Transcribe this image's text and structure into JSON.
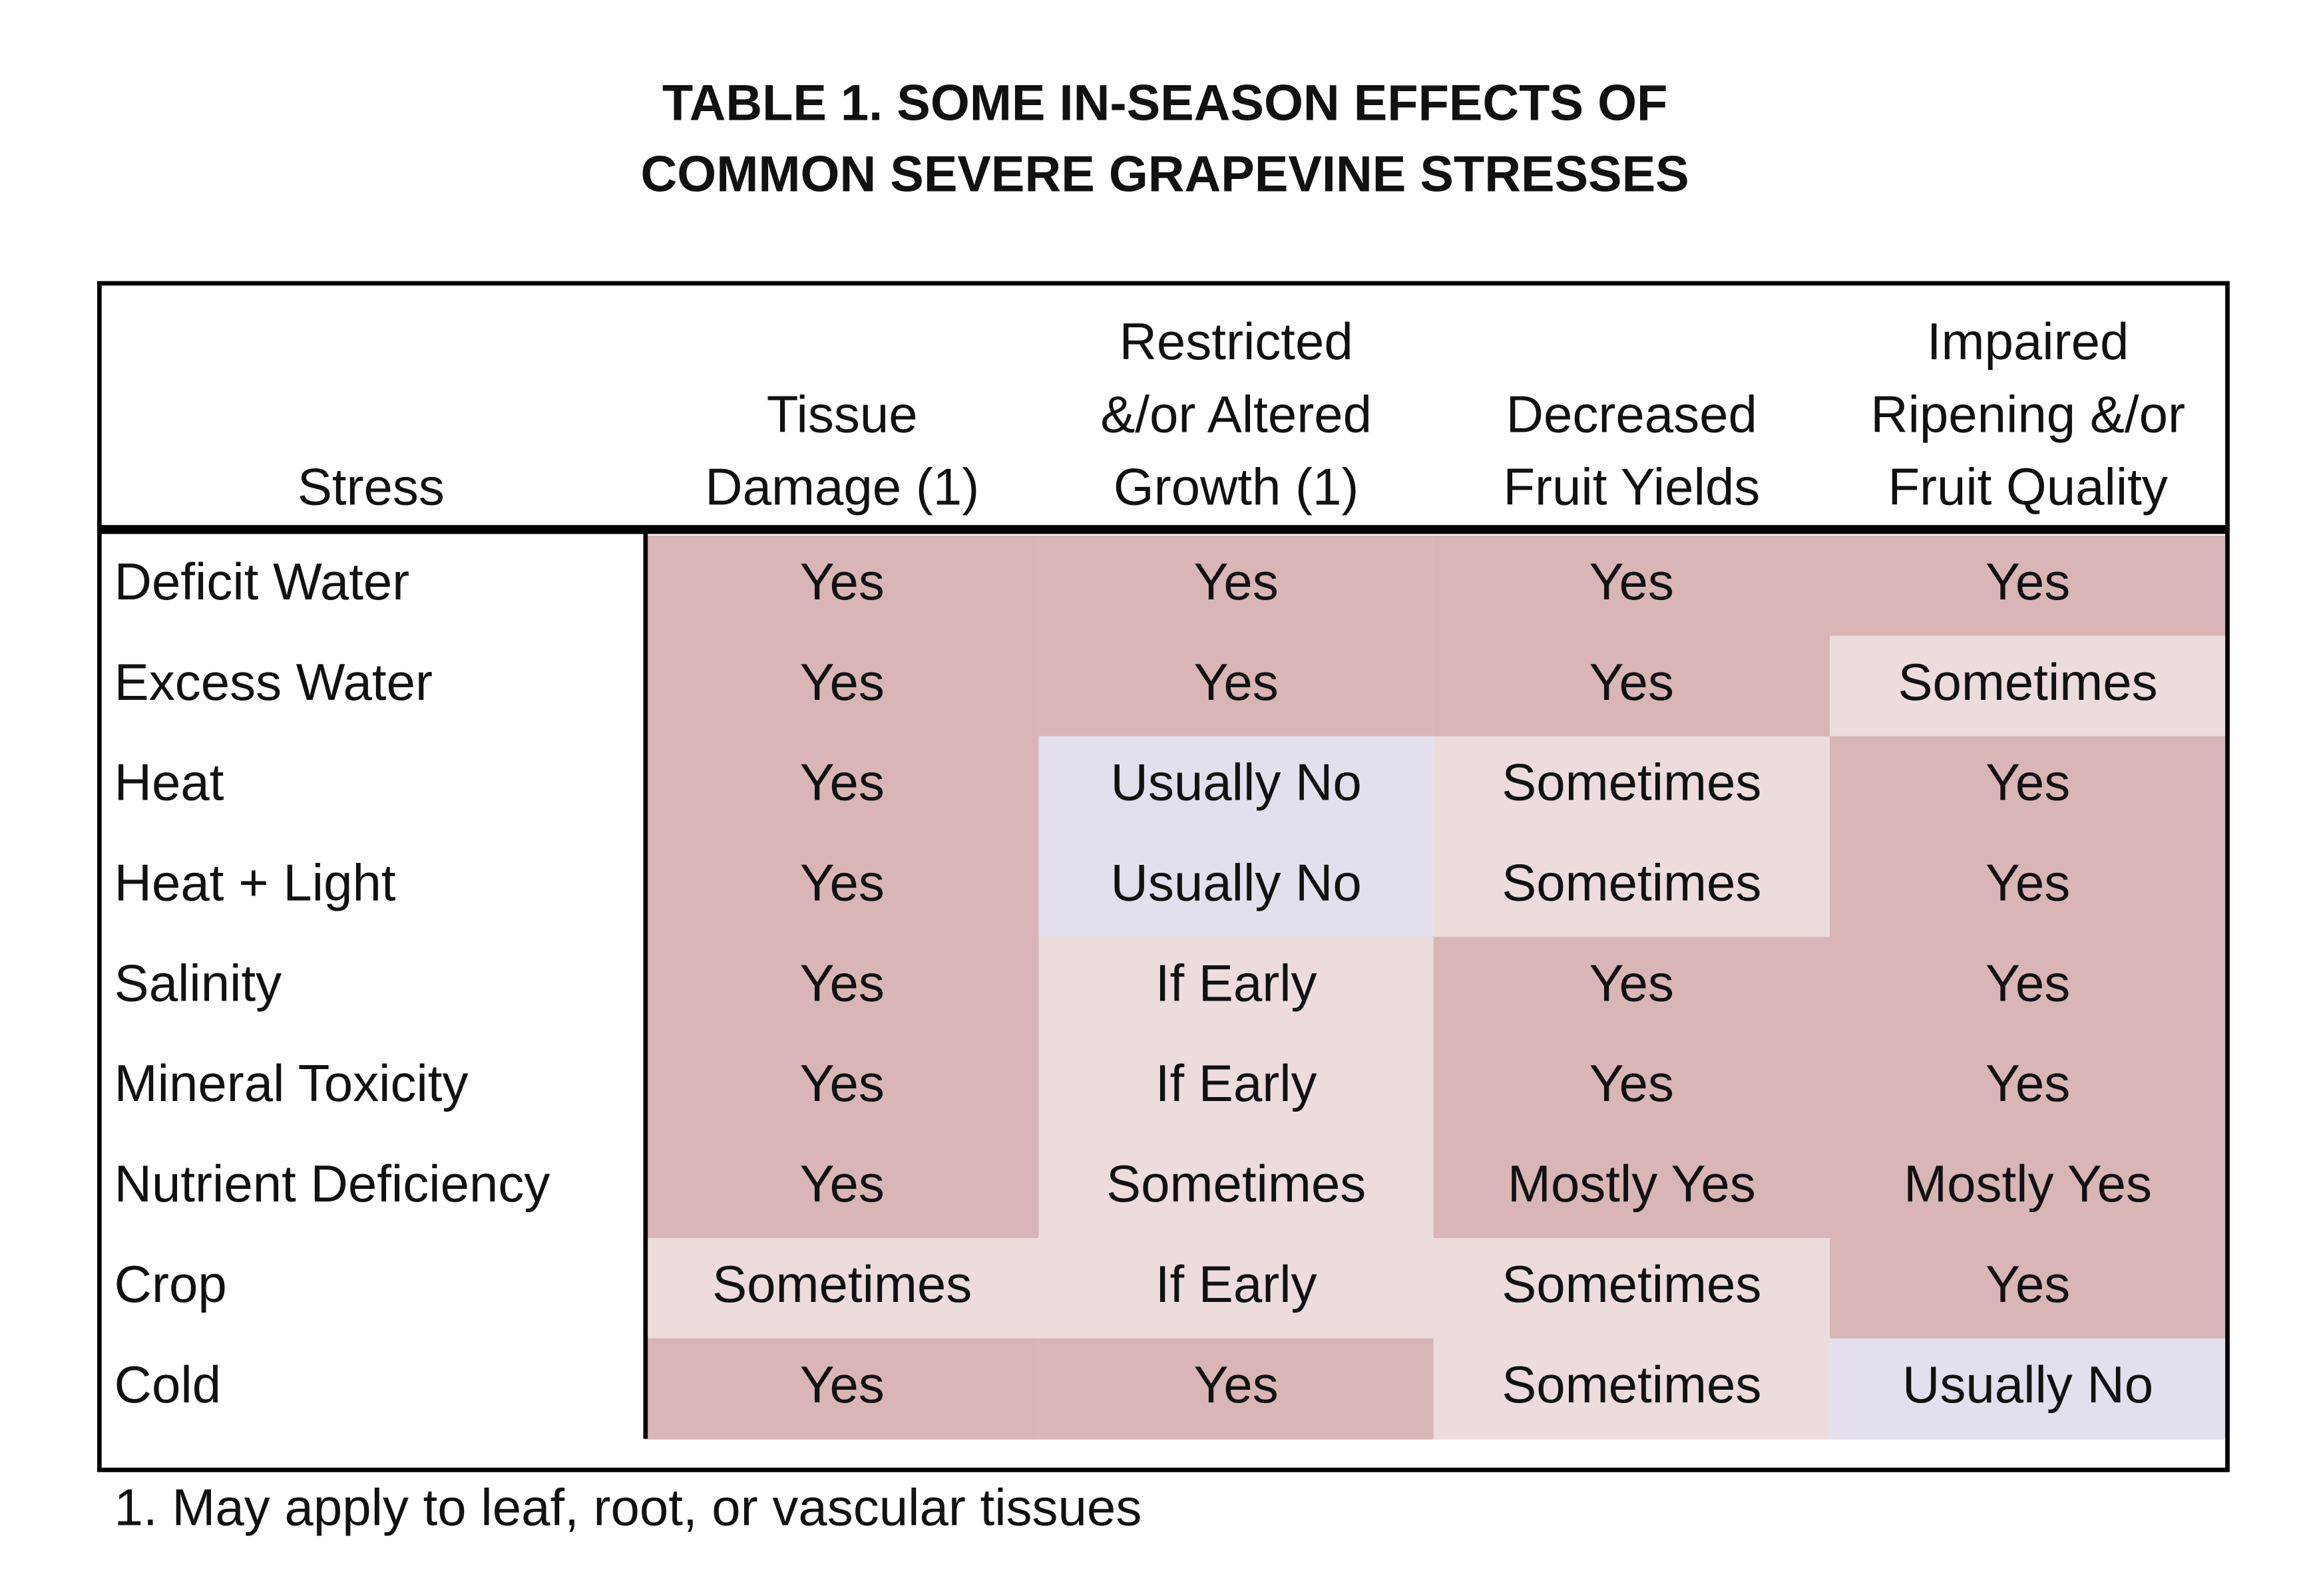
{
  "title": {
    "lines": [
      "TABLE 1.  SOME IN-SEASON EFFECTS OF",
      "COMMON SEVERE GRAPEVINE STRESSES"
    ]
  },
  "table": {
    "header": [
      [
        "Stress"
      ],
      [
        "Tissue",
        "Damage (1)"
      ],
      [
        "Restricted",
        "&/or Altered",
        "Growth (1)"
      ],
      [
        "Decreased",
        "Fruit Yields"
      ],
      [
        "Impaired",
        "Ripening &/or",
        "Fruit Quality"
      ]
    ],
    "rows": [
      [
        "Deficit Water",
        "Yes",
        "Yes",
        "Yes",
        "Yes"
      ],
      [
        "Excess Water",
        "Yes",
        "Yes",
        "Yes",
        "Sometimes"
      ],
      [
        "Heat",
        "Yes",
        "Usually No",
        "Sometimes",
        "Yes"
      ],
      [
        "Heat + Light",
        "Yes",
        "Usually No",
        "Sometimes",
        "Yes"
      ],
      [
        "Salinity",
        "Yes",
        "If Early",
        "Yes",
        "Yes"
      ],
      [
        "Mineral Toxicity",
        "Yes",
        "If Early",
        "Yes",
        "Yes"
      ],
      [
        "Nutrient Deficiency",
        "Yes",
        "Sometimes",
        "Mostly Yes",
        "Mostly Yes"
      ],
      [
        "Crop",
        "Sometimes",
        "If Early",
        "Sometimes",
        "Yes"
      ],
      [
        "Cold",
        "Yes",
        "Yes",
        "Sometimes",
        "Usually No"
      ]
    ],
    "cell_fills": [
      [
        "#d9b5b5",
        "#d9b5b5",
        "#d9b5b5",
        "#d9b5b5"
      ],
      [
        "#d9b5b5",
        "#d9b5b5",
        "#d9b5b5",
        "#ecdcdc"
      ],
      [
        "#d9b5b5",
        "#e3dfec",
        "#ecdcdc",
        "#d9b5b5"
      ],
      [
        "#d9b5b5",
        "#e3dfec",
        "#ecdcdc",
        "#d9b5b5"
      ],
      [
        "#d9b5b5",
        "#ecdcdc",
        "#d9b5b5",
        "#d9b5b5"
      ],
      [
        "#d9b5b5",
        "#ecdcdc",
        "#d9b5b5",
        "#d9b5b5"
      ],
      [
        "#d9b5b5",
        "#ecdcdc",
        "#d9b5b5",
        "#d9b5b5"
      ],
      [
        "#ecdcdc",
        "#ecdcdc",
        "#ecdcdc",
        "#d9b5b5"
      ],
      [
        "#d9b5b5",
        "#d9b5b5",
        "#ecdcdc",
        "#e3dfec"
      ]
    ]
  },
  "footnote": "1. May apply to leaf, root, or vascular tissues"
}
